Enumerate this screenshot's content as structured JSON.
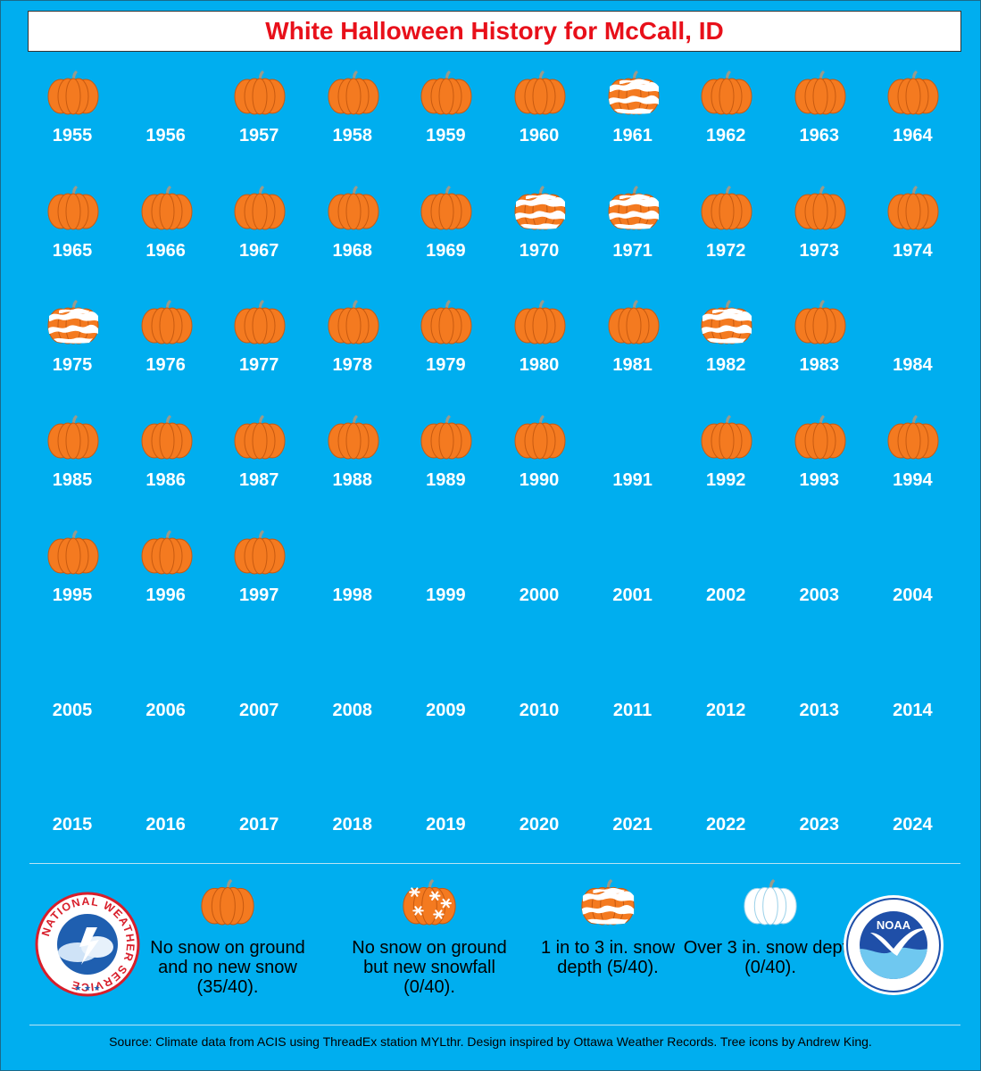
{
  "title": "White Halloween History for McCall, ID",
  "colors": {
    "background": "#00aeef",
    "title": "#e8101a",
    "pumpkin": "#f47a20",
    "pumpkin_rib": "#c85a10",
    "stem": "#9a9a8a",
    "snow": "#ffffff"
  },
  "years": [
    {
      "year": "1955",
      "category": "none"
    },
    {
      "year": "1956",
      "category": ""
    },
    {
      "year": "1957",
      "category": "none"
    },
    {
      "year": "1958",
      "category": "none"
    },
    {
      "year": "1959",
      "category": "none"
    },
    {
      "year": "1960",
      "category": "none"
    },
    {
      "year": "1961",
      "category": "depth-1-3"
    },
    {
      "year": "1962",
      "category": "none"
    },
    {
      "year": "1963",
      "category": "none"
    },
    {
      "year": "1964",
      "category": "none"
    },
    {
      "year": "1965",
      "category": "none"
    },
    {
      "year": "1966",
      "category": "none"
    },
    {
      "year": "1967",
      "category": "none"
    },
    {
      "year": "1968",
      "category": "none"
    },
    {
      "year": "1969",
      "category": "none"
    },
    {
      "year": "1970",
      "category": "depth-1-3"
    },
    {
      "year": "1971",
      "category": "depth-1-3"
    },
    {
      "year": "1972",
      "category": "none"
    },
    {
      "year": "1973",
      "category": "none"
    },
    {
      "year": "1974",
      "category": "none"
    },
    {
      "year": "1975",
      "category": "depth-1-3"
    },
    {
      "year": "1976",
      "category": "none"
    },
    {
      "year": "1977",
      "category": "none"
    },
    {
      "year": "1978",
      "category": "none"
    },
    {
      "year": "1979",
      "category": "none"
    },
    {
      "year": "1980",
      "category": "none"
    },
    {
      "year": "1981",
      "category": "none"
    },
    {
      "year": "1982",
      "category": "depth-1-3"
    },
    {
      "year": "1983",
      "category": "none"
    },
    {
      "year": "1984",
      "category": ""
    },
    {
      "year": "1985",
      "category": "none"
    },
    {
      "year": "1986",
      "category": "none"
    },
    {
      "year": "1987",
      "category": "none"
    },
    {
      "year": "1988",
      "category": "none"
    },
    {
      "year": "1989",
      "category": "none"
    },
    {
      "year": "1990",
      "category": "none"
    },
    {
      "year": "1991",
      "category": ""
    },
    {
      "year": "1992",
      "category": "none"
    },
    {
      "year": "1993",
      "category": "none"
    },
    {
      "year": "1994",
      "category": "none"
    },
    {
      "year": "1995",
      "category": "none"
    },
    {
      "year": "1996",
      "category": "none"
    },
    {
      "year": "1997",
      "category": "none"
    },
    {
      "year": "1998",
      "category": ""
    },
    {
      "year": "1999",
      "category": ""
    },
    {
      "year": "2000",
      "category": ""
    },
    {
      "year": "2001",
      "category": ""
    },
    {
      "year": "2002",
      "category": ""
    },
    {
      "year": "2003",
      "category": ""
    },
    {
      "year": "2004",
      "category": ""
    },
    {
      "year": "2005",
      "category": ""
    },
    {
      "year": "2006",
      "category": ""
    },
    {
      "year": "2007",
      "category": ""
    },
    {
      "year": "2008",
      "category": ""
    },
    {
      "year": "2009",
      "category": ""
    },
    {
      "year": "2010",
      "category": ""
    },
    {
      "year": "2011",
      "category": ""
    },
    {
      "year": "2012",
      "category": ""
    },
    {
      "year": "2013",
      "category": ""
    },
    {
      "year": "2014",
      "category": ""
    },
    {
      "year": "2015",
      "category": ""
    },
    {
      "year": "2016",
      "category": ""
    },
    {
      "year": "2017",
      "category": ""
    },
    {
      "year": "2018",
      "category": ""
    },
    {
      "year": "2019",
      "category": ""
    },
    {
      "year": "2020",
      "category": ""
    },
    {
      "year": "2021",
      "category": ""
    },
    {
      "year": "2022",
      "category": ""
    },
    {
      "year": "2023",
      "category": ""
    },
    {
      "year": "2024",
      "category": ""
    }
  ],
  "legend": [
    {
      "category": "none",
      "icon": "plain-pumpkin-icon",
      "label": "No snow on ground and no new snow (35/40)."
    },
    {
      "category": "new-snow",
      "icon": "snowflake-pumpkin-icon",
      "label": "No snow on ground but new snowfall (0/40)."
    },
    {
      "category": "depth-1-3",
      "icon": "snow-striped-pumpkin-icon",
      "label": "1 in to 3 in. snow depth (5/40)."
    },
    {
      "category": "depth-over-3",
      "icon": "white-pumpkin-icon",
      "label": "Over 3 in. snow depth (0/40)."
    }
  ],
  "logos": {
    "nws": {
      "icon": "nws-logo-icon",
      "text": "NATIONAL WEATHER SERVICE"
    },
    "noaa": {
      "icon": "noaa-logo-icon",
      "text": "NOAA"
    }
  },
  "source": "Source: Climate data from ACIS using ThreadEx station MYLthr. Design inspired by Ottawa Weather Records. Tree icons by Andrew King."
}
